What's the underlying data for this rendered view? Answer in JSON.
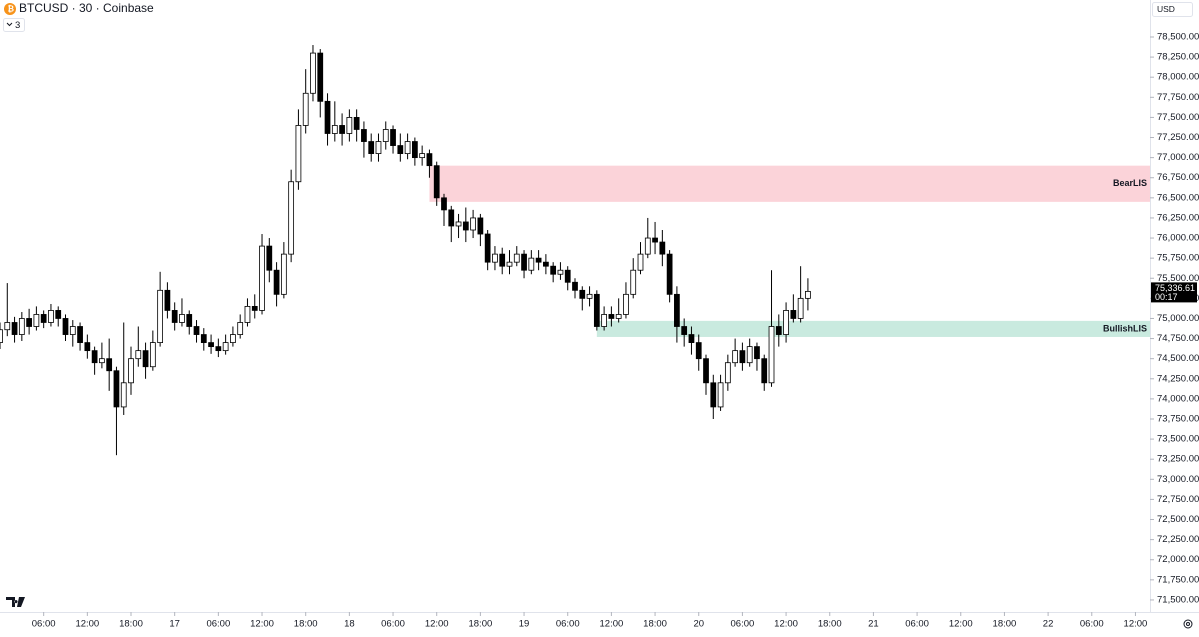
{
  "chart_data": {
    "type": "candlestick",
    "title": "BTCUSD · 30 · Coinbase",
    "indicator_count": 3,
    "currency": "USD",
    "up_color": "#ffffff",
    "down_color": "#000000",
    "border_color": "#000000",
    "grid": false,
    "xlim": [
      0,
      158
    ],
    "ylim": [
      71350,
      78960
    ],
    "xticks": [
      {
        "value": 6,
        "label": "06:00"
      },
      {
        "value": 12,
        "label": "12:00"
      },
      {
        "value": 18,
        "label": "18:00"
      },
      {
        "value": 24,
        "label": "17"
      },
      {
        "value": 30,
        "label": "06:00"
      },
      {
        "value": 36,
        "label": "12:00"
      },
      {
        "value": 42,
        "label": "18:00"
      },
      {
        "value": 48,
        "label": "18"
      },
      {
        "value": 54,
        "label": "06:00"
      },
      {
        "value": 60,
        "label": "12:00"
      },
      {
        "value": 66,
        "label": "18:00"
      },
      {
        "value": 72,
        "label": "19"
      },
      {
        "value": 78,
        "label": "06:00"
      },
      {
        "value": 84,
        "label": "12:00"
      },
      {
        "value": 90,
        "label": "18:00"
      },
      {
        "value": 96,
        "label": "20"
      },
      {
        "value": 102,
        "label": "06:00"
      },
      {
        "value": 108,
        "label": "12:00"
      },
      {
        "value": 114,
        "label": "18:00"
      },
      {
        "value": 120,
        "label": "21"
      },
      {
        "value": 126,
        "label": "06:00"
      },
      {
        "value": 132,
        "label": "12:00"
      },
      {
        "value": 138,
        "label": "18:00"
      },
      {
        "value": 144,
        "label": "22"
      },
      {
        "value": 150,
        "label": "06:00"
      },
      {
        "value": 156,
        "label": "12:00"
      }
    ],
    "yticks": [
      {
        "value": 78500,
        "label": "78,500.00"
      },
      {
        "value": 78250,
        "label": "78,250.00"
      },
      {
        "value": 78000,
        "label": "78,000.00"
      },
      {
        "value": 77750,
        "label": "77,750.00"
      },
      {
        "value": 77500,
        "label": "77,500.00"
      },
      {
        "value": 77250,
        "label": "77,250.00"
      },
      {
        "value": 77000,
        "label": "77,000.00"
      },
      {
        "value": 76750,
        "label": "76,750.00"
      },
      {
        "value": 76500,
        "label": "76,500.00"
      },
      {
        "value": 76250,
        "label": "76,250.00"
      },
      {
        "value": 76000,
        "label": "76,000.00"
      },
      {
        "value": 75750,
        "label": "75,750.00"
      },
      {
        "value": 75500,
        "label": "75,500.00"
      },
      {
        "value": 75250,
        "label": "75,250.00"
      },
      {
        "value": 75000,
        "label": "75,000.00"
      },
      {
        "value": 74750,
        "label": "74,750.00"
      },
      {
        "value": 74500,
        "label": "74,500.00"
      },
      {
        "value": 74250,
        "label": "74,250.00"
      },
      {
        "value": 74000,
        "label": "74,000.00"
      },
      {
        "value": 73750,
        "label": "73,750.00"
      },
      {
        "value": 73500,
        "label": "73,500.00"
      },
      {
        "value": 73250,
        "label": "73,250.00"
      },
      {
        "value": 73000,
        "label": "73,000.00"
      },
      {
        "value": 72750,
        "label": "72,750.00"
      },
      {
        "value": 72500,
        "label": "72,500.00"
      },
      {
        "value": 72250,
        "label": "72,250.00"
      },
      {
        "value": 72000,
        "label": "72,000.00"
      },
      {
        "value": 71750,
        "label": "71,750.00"
      },
      {
        "value": 71500,
        "label": "71,500.00"
      }
    ],
    "zones": [
      {
        "name": "BearLIS",
        "from": 76450,
        "to": 76900,
        "start": 59,
        "color": "#fbd3d9"
      },
      {
        "name": "BullishLIS",
        "from": 74770,
        "to": 74970,
        "start": 82,
        "color": "#c9eadf"
      }
    ],
    "last_price": {
      "value": 75336.61,
      "label": "75,336.61"
    },
    "countdown": "00:17",
    "x": [
      0,
      1,
      2,
      3,
      4,
      5,
      6,
      7,
      8,
      9,
      10,
      11,
      12,
      13,
      14,
      15,
      16,
      17,
      18,
      19,
      20,
      21,
      22,
      23,
      24,
      25,
      26,
      27,
      28,
      29,
      30,
      31,
      32,
      33,
      34,
      35,
      36,
      37,
      38,
      39,
      40,
      41,
      42,
      43,
      44,
      45,
      46,
      47,
      48,
      49,
      50,
      51,
      52,
      53,
      54,
      55,
      56,
      57,
      58,
      59,
      60,
      61,
      62,
      63,
      64,
      65,
      66,
      67,
      68,
      69,
      70,
      71,
      72,
      73,
      74,
      75,
      76,
      77,
      78,
      79,
      80,
      81,
      82,
      83,
      84,
      85,
      86,
      87,
      88,
      89,
      90,
      91,
      92,
      93,
      94,
      95,
      96,
      97,
      98,
      99,
      100,
      101,
      102,
      103,
      104,
      105,
      106,
      107,
      108,
      109,
      110,
      111
    ],
    "open": [
      74700,
      74860,
      74950,
      74800,
      75000,
      74900,
      75050,
      74950,
      75100,
      75000,
      74800,
      74900,
      74700,
      74600,
      74450,
      74500,
      74350,
      73900,
      74200,
      74500,
      74600,
      74400,
      74700,
      75350,
      75100,
      74950,
      75050,
      74900,
      74800,
      74700,
      74650,
      74600,
      74700,
      74800,
      74950,
      75150,
      75100,
      75900,
      75600,
      75300,
      75800,
      76700,
      77400,
      77800,
      78300,
      77700,
      77300,
      77400,
      77300,
      77500,
      77350,
      77200,
      77050,
      77200,
      77350,
      77150,
      77050,
      77200,
      77000,
      77050,
      76900,
      76500,
      76350,
      76150,
      76200,
      76100,
      76250,
      76050,
      75700,
      75800,
      75650,
      75700,
      75800,
      75600,
      75750,
      75700,
      75650,
      75550,
      75600,
      75450,
      75350,
      75250,
      75300,
      74900,
      75050,
      75000,
      75050,
      75300,
      75600,
      75800,
      76000,
      75950,
      75800,
      75300,
      74900,
      74800,
      74700,
      74500,
      74200,
      73900,
      74200,
      74450,
      74600,
      74450,
      74650,
      74500,
      74200,
      74900,
      74800,
      75100,
      75000,
      75250
    ],
    "high": [
      74950,
      75440,
      75020,
      75080,
      75120,
      75150,
      75100,
      75180,
      75150,
      75050,
      74980,
      74950,
      74800,
      74650,
      74700,
      74750,
      74400,
      74950,
      74650,
      74900,
      74700,
      74850,
      75580,
      75450,
      75200,
      75250,
      75100,
      74980,
      74880,
      74800,
      74750,
      74800,
      74900,
      75050,
      75250,
      75300,
      76050,
      76000,
      75700,
      75950,
      76850,
      77600,
      78100,
      78400,
      78350,
      77800,
      77700,
      77550,
      77600,
      77600,
      77450,
      77300,
      77300,
      77450,
      77400,
      77300,
      77300,
      77250,
      77150,
      77100,
      76950,
      76550,
      76400,
      76300,
      76380,
      76350,
      76300,
      76100,
      75900,
      75880,
      75850,
      75900,
      75850,
      75850,
      75850,
      75800,
      75700,
      75700,
      75650,
      75500,
      75400,
      75400,
      75350,
      75150,
      75150,
      75250,
      75450,
      75750,
      75950,
      76250,
      76200,
      76100,
      75850,
      75400,
      75000,
      74900,
      74800,
      74550,
      74300,
      74300,
      74550,
      74750,
      74700,
      74750,
      74700,
      74550,
      75600,
      75050,
      75200,
      75300,
      75650,
      75500
    ],
    "low": [
      74620,
      74780,
      74700,
      74720,
      74800,
      74850,
      74880,
      74900,
      74900,
      74720,
      74650,
      74600,
      74500,
      74300,
      74380,
      74100,
      73300,
      73800,
      74050,
      74400,
      74250,
      74350,
      74650,
      75000,
      74850,
      74900,
      74800,
      74700,
      74600,
      74560,
      74520,
      74550,
      74650,
      74750,
      74900,
      75000,
      75050,
      75450,
      75150,
      75250,
      75700,
      76600,
      77300,
      77700,
      77500,
      77150,
      77200,
      77150,
      77200,
      77200,
      77000,
      76950,
      76950,
      77100,
      77050,
      76950,
      76980,
      76900,
      76900,
      76750,
      76400,
      76150,
      75950,
      76000,
      75950,
      76000,
      75900,
      75600,
      75600,
      75550,
      75550,
      75650,
      75500,
      75550,
      75600,
      75550,
      75450,
      75480,
      75350,
      75250,
      75100,
      75150,
      74850,
      74850,
      74900,
      74950,
      75000,
      75250,
      75550,
      75750,
      75800,
      75650,
      75200,
      74700,
      74650,
      74550,
      74350,
      74050,
      73750,
      73850,
      74100,
      74400,
      74350,
      74400,
      74350,
      74100,
      74150,
      74650,
      74700,
      74950,
      74950,
      75100
    ],
    "close": [
      74860,
      74950,
      74800,
      75000,
      74900,
      75050,
      74950,
      75100,
      75000,
      74800,
      74900,
      74700,
      74600,
      74450,
      74500,
      74350,
      73900,
      74200,
      74500,
      74600,
      74400,
      74700,
      75350,
      75100,
      74950,
      75050,
      74900,
      74800,
      74700,
      74650,
      74600,
      74700,
      74800,
      74950,
      75150,
      75100,
      75900,
      75600,
      75300,
      75800,
      76700,
      77400,
      77800,
      78300,
      77700,
      77300,
      77400,
      77300,
      77500,
      77350,
      77200,
      77050,
      77200,
      77350,
      77150,
      77050,
      77200,
      77000,
      77050,
      76900,
      76500,
      76350,
      76150,
      76200,
      76100,
      76250,
      76050,
      75700,
      75800,
      75650,
      75700,
      75800,
      75600,
      75750,
      75700,
      75650,
      75550,
      75600,
      75450,
      75350,
      75250,
      75300,
      74900,
      75050,
      75000,
      75050,
      75300,
      75600,
      75800,
      76000,
      75950,
      75800,
      75300,
      74900,
      74800,
      74700,
      74500,
      74200,
      73900,
      74200,
      74450,
      74600,
      74450,
      74650,
      74500,
      74200,
      74900,
      74800,
      75100,
      75000,
      75250,
      75336.61
    ]
  }
}
